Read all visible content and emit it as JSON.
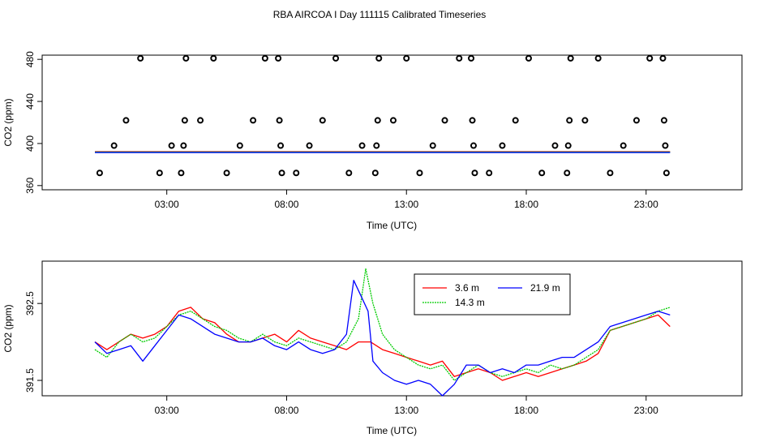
{
  "page": {
    "title": "RBA AIRCOA I  Day 111115  Calibrated Timeseries"
  },
  "chart_data": [
    {
      "type": "scatter",
      "title": "RBA AIRCOA I  Day 111115  Calibrated Timeseries",
      "xlabel": "Time (UTC)",
      "ylabel": "CO2 (ppm)",
      "xlim": [
        -2.2,
        27.0
      ],
      "ylim": [
        356,
        484
      ],
      "xticks": [
        3,
        8,
        13,
        18,
        23
      ],
      "xtick_labels": [
        "03:00",
        "08:00",
        "13:00",
        "18:00",
        "23:00"
      ],
      "yticks": [
        360,
        400,
        440,
        480
      ],
      "ytick_labels": [
        "360",
        "400",
        "440",
        "480"
      ],
      "calibration_points": [
        {
          "t": 0.2,
          "co2": 372
        },
        {
          "t": 0.8,
          "co2": 398
        },
        {
          "t": 1.3,
          "co2": 422
        },
        {
          "t": 1.9,
          "co2": 481
        },
        {
          "t": 2.7,
          "co2": 372
        },
        {
          "t": 3.2,
          "co2": 398
        },
        {
          "t": 3.6,
          "co2": 372
        },
        {
          "t": 3.7,
          "co2": 398
        },
        {
          "t": 3.75,
          "co2": 422
        },
        {
          "t": 3.8,
          "co2": 481
        },
        {
          "t": 4.4,
          "co2": 422
        },
        {
          "t": 4.95,
          "co2": 481
        },
        {
          "t": 5.5,
          "co2": 372
        },
        {
          "t": 6.05,
          "co2": 398
        },
        {
          "t": 6.6,
          "co2": 422
        },
        {
          "t": 7.1,
          "co2": 481
        },
        {
          "t": 7.65,
          "co2": 481
        },
        {
          "t": 7.7,
          "co2": 422
        },
        {
          "t": 7.75,
          "co2": 398
        },
        {
          "t": 7.8,
          "co2": 372
        },
        {
          "t": 8.4,
          "co2": 372
        },
        {
          "t": 8.95,
          "co2": 398
        },
        {
          "t": 9.5,
          "co2": 422
        },
        {
          "t": 10.05,
          "co2": 481
        },
        {
          "t": 10.6,
          "co2": 372
        },
        {
          "t": 11.15,
          "co2": 398
        },
        {
          "t": 11.7,
          "co2": 372
        },
        {
          "t": 11.75,
          "co2": 398
        },
        {
          "t": 11.8,
          "co2": 422
        },
        {
          "t": 11.85,
          "co2": 481
        },
        {
          "t": 12.45,
          "co2": 422
        },
        {
          "t": 13.0,
          "co2": 481
        },
        {
          "t": 13.55,
          "co2": 372
        },
        {
          "t": 14.1,
          "co2": 398
        },
        {
          "t": 14.6,
          "co2": 422
        },
        {
          "t": 15.2,
          "co2": 481
        },
        {
          "t": 15.7,
          "co2": 481
        },
        {
          "t": 15.75,
          "co2": 422
        },
        {
          "t": 15.8,
          "co2": 398
        },
        {
          "t": 15.85,
          "co2": 372
        },
        {
          "t": 16.45,
          "co2": 372
        },
        {
          "t": 17.0,
          "co2": 398
        },
        {
          "t": 17.55,
          "co2": 422
        },
        {
          "t": 18.1,
          "co2": 481
        },
        {
          "t": 18.65,
          "co2": 372
        },
        {
          "t": 19.2,
          "co2": 398
        },
        {
          "t": 19.7,
          "co2": 372
        },
        {
          "t": 19.75,
          "co2": 398
        },
        {
          "t": 19.8,
          "co2": 422
        },
        {
          "t": 19.85,
          "co2": 481
        },
        {
          "t": 20.45,
          "co2": 422
        },
        {
          "t": 21.0,
          "co2": 481
        },
        {
          "t": 21.5,
          "co2": 372
        },
        {
          "t": 22.05,
          "co2": 398
        },
        {
          "t": 22.6,
          "co2": 422
        },
        {
          "t": 23.15,
          "co2": 481
        },
        {
          "t": 23.7,
          "co2": 481
        },
        {
          "t": 23.75,
          "co2": 422
        },
        {
          "t": 23.8,
          "co2": 398
        },
        {
          "t": 23.85,
          "co2": 372
        }
      ],
      "baseline_series": [
        {
          "name": "3.6 m",
          "color": "#ff0000",
          "value": 391.8
        },
        {
          "name": "14.3 m",
          "color": "#00cc00",
          "value": 391.8
        },
        {
          "name": "21.9 m",
          "color": "#0000ff",
          "value": 391.8
        }
      ]
    },
    {
      "type": "line",
      "xlabel": "Time (UTC)",
      "ylabel": "CO2 (ppm)",
      "xlim": [
        -2.2,
        27.0
      ],
      "ylim": [
        391.3,
        393.05
      ],
      "xticks": [
        3,
        8,
        13,
        18,
        23
      ],
      "xtick_labels": [
        "03:00",
        "08:00",
        "13:00",
        "18:00",
        "23:00"
      ],
      "yticks": [
        391.5,
        392.5
      ],
      "ytick_labels": [
        "391.5",
        "392.5"
      ],
      "legend": {
        "position": "top-center",
        "entries": [
          "3.6 m",
          "21.9 m",
          "14.3 m"
        ]
      },
      "series": [
        {
          "name": "3.6 m",
          "color": "#ff0000",
          "points": [
            [
              0.0,
              392.0
            ],
            [
              0.5,
              391.9
            ],
            [
              1.0,
              392.0
            ],
            [
              1.5,
              392.1
            ],
            [
              2.0,
              392.05
            ],
            [
              2.5,
              392.1
            ],
            [
              3.0,
              392.2
            ],
            [
              3.5,
              392.4
            ],
            [
              4.0,
              392.45
            ],
            [
              4.5,
              392.3
            ],
            [
              5.0,
              392.25
            ],
            [
              5.5,
              392.1
            ],
            [
              6.0,
              392.0
            ],
            [
              6.5,
              392.0
            ],
            [
              7.0,
              392.05
            ],
            [
              7.5,
              392.1
            ],
            [
              8.0,
              392.0
            ],
            [
              8.5,
              392.15
            ],
            [
              9.0,
              392.05
            ],
            [
              9.5,
              392.0
            ],
            [
              10.0,
              391.95
            ],
            [
              10.5,
              391.9
            ],
            [
              11.0,
              392.0
            ],
            [
              11.5,
              392.0
            ],
            [
              12.0,
              391.9
            ],
            [
              12.5,
              391.85
            ],
            [
              13.0,
              391.8
            ],
            [
              13.5,
              391.75
            ],
            [
              14.0,
              391.7
            ],
            [
              14.5,
              391.75
            ],
            [
              15.0,
              391.55
            ],
            [
              15.5,
              391.6
            ],
            [
              16.0,
              391.65
            ],
            [
              16.5,
              391.6
            ],
            [
              17.0,
              391.5
            ],
            [
              17.5,
              391.55
            ],
            [
              18.0,
              391.6
            ],
            [
              18.5,
              391.55
            ],
            [
              19.0,
              391.6
            ],
            [
              19.5,
              391.65
            ],
            [
              20.0,
              391.7
            ],
            [
              20.5,
              391.75
            ],
            [
              21.0,
              391.85
            ],
            [
              21.5,
              392.15
            ],
            [
              22.0,
              392.2
            ],
            [
              22.5,
              392.25
            ],
            [
              23.0,
              392.3
            ],
            [
              23.5,
              392.35
            ],
            [
              24.0,
              392.2
            ]
          ]
        },
        {
          "name": "14.3 m",
          "color": "#00cc00",
          "points": [
            [
              0.0,
              391.9
            ],
            [
              0.5,
              391.8
            ],
            [
              1.0,
              392.0
            ],
            [
              1.5,
              392.1
            ],
            [
              2.0,
              392.0
            ],
            [
              2.5,
              392.05
            ],
            [
              3.0,
              392.2
            ],
            [
              3.5,
              392.35
            ],
            [
              4.0,
              392.4
            ],
            [
              4.5,
              392.3
            ],
            [
              5.0,
              392.2
            ],
            [
              5.5,
              392.15
            ],
            [
              6.0,
              392.05
            ],
            [
              6.5,
              392.0
            ],
            [
              7.0,
              392.1
            ],
            [
              7.5,
              392.0
            ],
            [
              8.0,
              391.95
            ],
            [
              8.5,
              392.05
            ],
            [
              9.0,
              392.0
            ],
            [
              9.5,
              391.95
            ],
            [
              10.0,
              391.9
            ],
            [
              10.5,
              392.0
            ],
            [
              11.0,
              392.3
            ],
            [
              11.3,
              392.95
            ],
            [
              11.6,
              392.5
            ],
            [
              12.0,
              392.1
            ],
            [
              12.5,
              391.9
            ],
            [
              13.0,
              391.8
            ],
            [
              13.5,
              391.7
            ],
            [
              14.0,
              391.65
            ],
            [
              14.5,
              391.7
            ],
            [
              15.0,
              391.5
            ],
            [
              15.5,
              391.6
            ],
            [
              16.0,
              391.7
            ],
            [
              16.5,
              391.6
            ],
            [
              17.0,
              391.55
            ],
            [
              17.5,
              391.6
            ],
            [
              18.0,
              391.65
            ],
            [
              18.5,
              391.6
            ],
            [
              19.0,
              391.7
            ],
            [
              19.5,
              391.65
            ],
            [
              20.0,
              391.7
            ],
            [
              20.5,
              391.8
            ],
            [
              21.0,
              391.9
            ],
            [
              21.5,
              392.15
            ],
            [
              22.0,
              392.2
            ],
            [
              22.5,
              392.25
            ],
            [
              23.0,
              392.3
            ],
            [
              23.5,
              392.4
            ],
            [
              24.0,
              392.45
            ]
          ]
        },
        {
          "name": "21.9 m",
          "color": "#0000ff",
          "points": [
            [
              0.0,
              392.0
            ],
            [
              0.5,
              391.85
            ],
            [
              1.0,
              391.9
            ],
            [
              1.5,
              391.95
            ],
            [
              2.0,
              391.75
            ],
            [
              2.5,
              391.95
            ],
            [
              3.0,
              392.15
            ],
            [
              3.5,
              392.35
            ],
            [
              4.0,
              392.3
            ],
            [
              4.5,
              392.2
            ],
            [
              5.0,
              392.1
            ],
            [
              5.5,
              392.05
            ],
            [
              6.0,
              392.0
            ],
            [
              6.5,
              392.0
            ],
            [
              7.0,
              392.05
            ],
            [
              7.5,
              391.95
            ],
            [
              8.0,
              391.9
            ],
            [
              8.5,
              392.0
            ],
            [
              9.0,
              391.9
            ],
            [
              9.5,
              391.85
            ],
            [
              10.0,
              391.9
            ],
            [
              10.5,
              392.1
            ],
            [
              10.8,
              392.8
            ],
            [
              11.1,
              392.6
            ],
            [
              11.4,
              392.4
            ],
            [
              11.6,
              391.75
            ],
            [
              12.0,
              391.6
            ],
            [
              12.5,
              391.5
            ],
            [
              13.0,
              391.45
            ],
            [
              13.5,
              391.5
            ],
            [
              14.0,
              391.45
            ],
            [
              14.5,
              391.3
            ],
            [
              15.0,
              391.45
            ],
            [
              15.5,
              391.7
            ],
            [
              16.0,
              391.7
            ],
            [
              16.5,
              391.6
            ],
            [
              17.0,
              391.65
            ],
            [
              17.5,
              391.6
            ],
            [
              18.0,
              391.7
            ],
            [
              18.5,
              391.7
            ],
            [
              19.0,
              391.75
            ],
            [
              19.5,
              391.8
            ],
            [
              20.0,
              391.8
            ],
            [
              20.5,
              391.9
            ],
            [
              21.0,
              392.0
            ],
            [
              21.5,
              392.2
            ],
            [
              22.0,
              392.25
            ],
            [
              22.5,
              392.3
            ],
            [
              23.0,
              392.35
            ],
            [
              23.5,
              392.4
            ],
            [
              24.0,
              392.35
            ]
          ]
        }
      ]
    }
  ]
}
